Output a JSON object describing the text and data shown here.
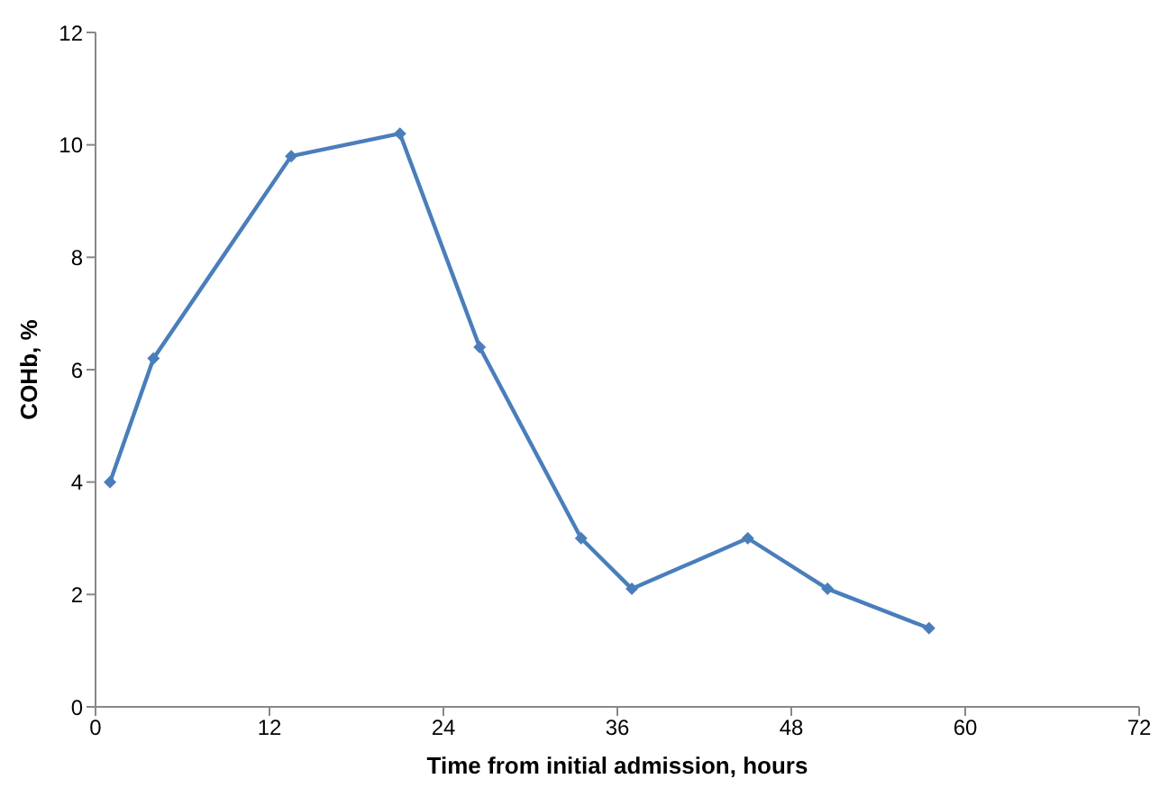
{
  "chart_data": {
    "type": "line",
    "xlabel": "Time from initial admission, hours",
    "ylabel": "COHb, %",
    "x": [
      1,
      4,
      13.5,
      21,
      26.5,
      33.5,
      37,
      45,
      50.5,
      57.5
    ],
    "series": [
      {
        "color": "#4a7ebb",
        "values": [
          4.0,
          6.2,
          9.8,
          10.2,
          6.4,
          3.0,
          2.1,
          3.0,
          2.1,
          1.4
        ]
      }
    ],
    "xlim": [
      0,
      72
    ],
    "xticks": [
      0,
      12,
      24,
      36,
      48,
      60,
      72
    ],
    "ylim": [
      0,
      12
    ],
    "yticks": [
      0,
      2,
      4,
      6,
      8,
      10,
      12
    ],
    "grid": false,
    "legend": false,
    "marker": "diamond",
    "line_style": "solid"
  }
}
